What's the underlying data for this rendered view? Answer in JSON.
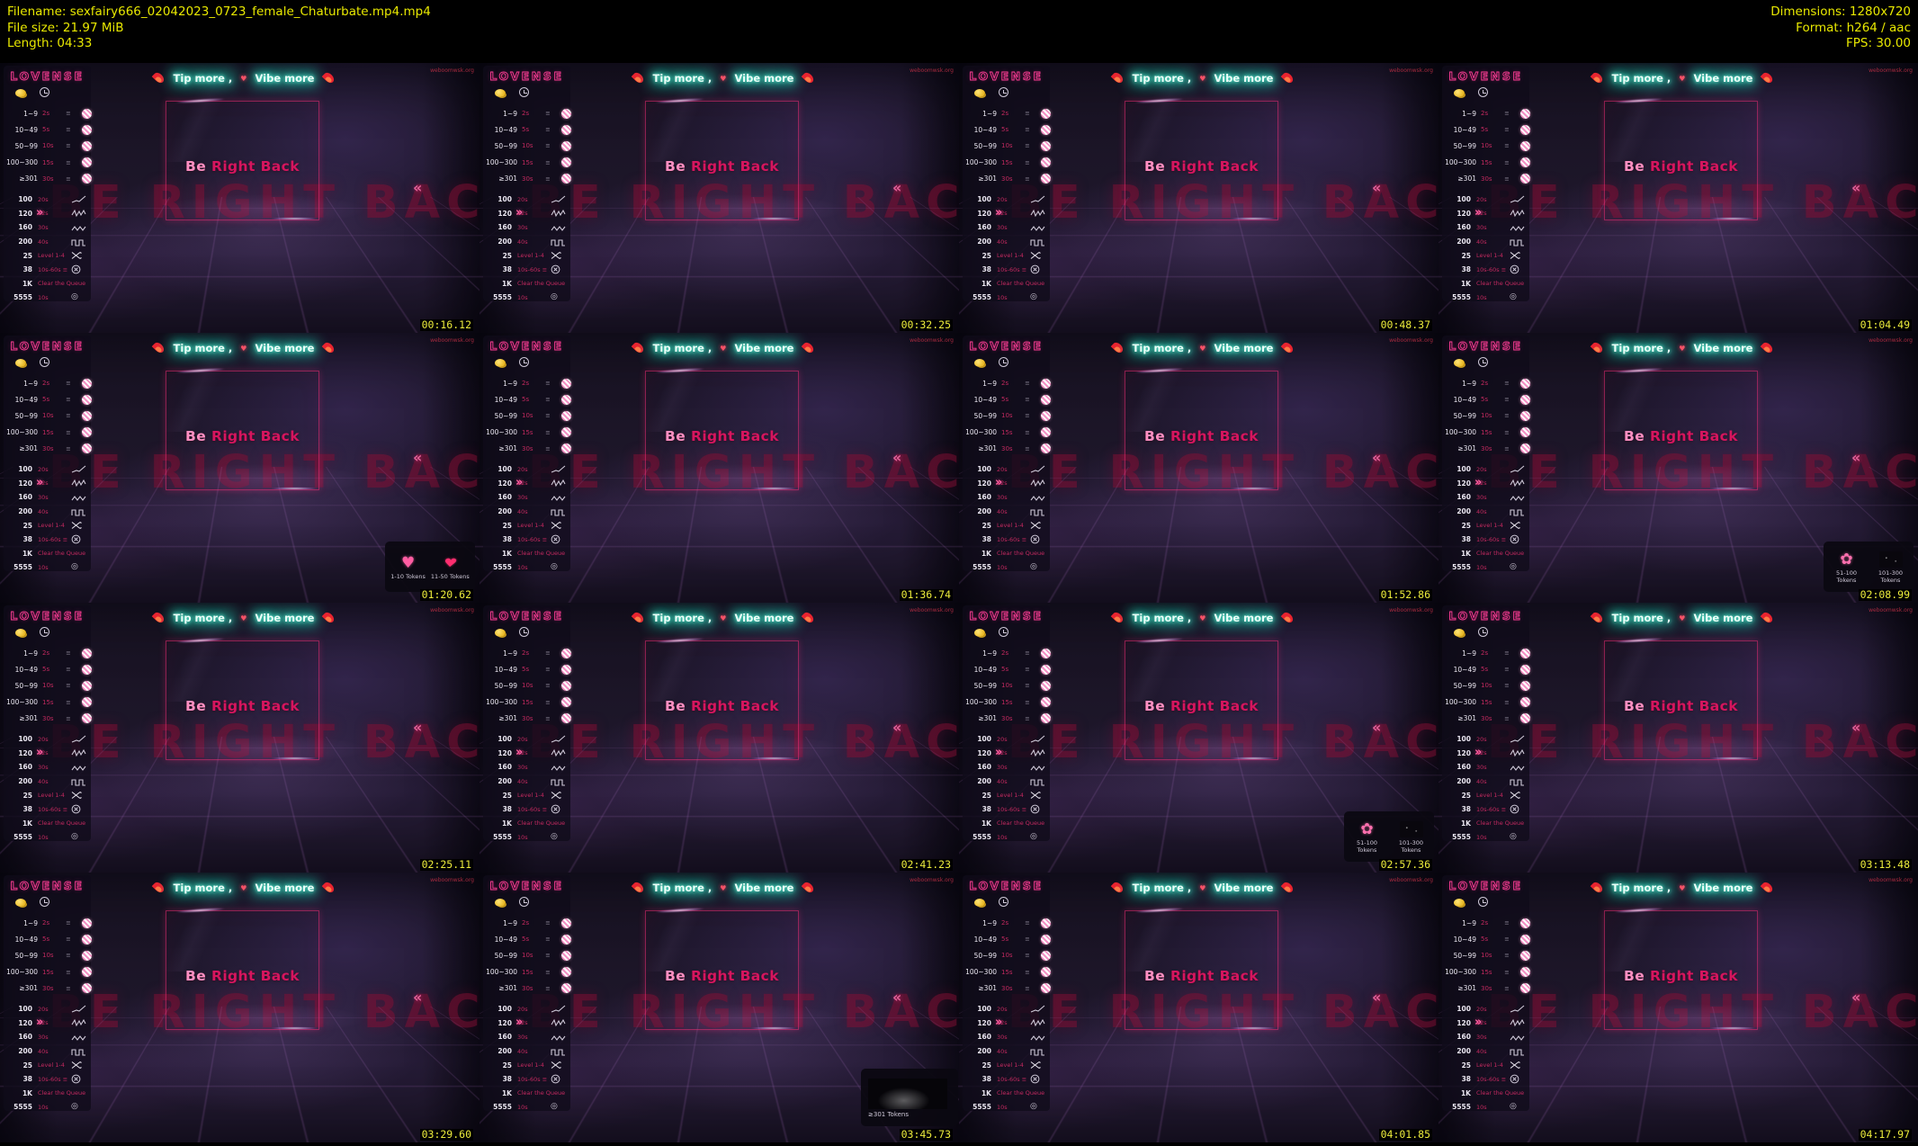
{
  "header": {
    "left_lines": [
      "Filename: sexfairy666_02042023_0723_female_Chaturbate.mp4.mp4",
      "File size: 21.97 MiB",
      "Length: 04:33"
    ],
    "right_lines": [
      "Dimensions: 1280x720",
      "Format: h264 / aac",
      "FPS: 30.00"
    ],
    "text_color": "#e8e800"
  },
  "thumb": {
    "watermark": "weboomwsk.org",
    "bg_text": "BE RIGHT BACK",
    "neon": {
      "left": "Tip more ,",
      "heart": "♥",
      "right": "Vibe more"
    },
    "brb": {
      "word1": "Be",
      "word2": " Right Back"
    },
    "right_chevron": "«",
    "menu": {
      "logo": "LOVENSE",
      "header_icons": [
        "coins-icon",
        "clock-icon"
      ],
      "list_icon": "≡",
      "expand_chevron": "»",
      "record_glyph": "◎",
      "tip_rows": [
        {
          "tokens": "1~9",
          "duration": "2s"
        },
        {
          "tokens": "10~49",
          "duration": "5s"
        },
        {
          "tokens": "50~99",
          "duration": "10s"
        },
        {
          "tokens": "100~300",
          "duration": "15s"
        },
        {
          "tokens": "≥301",
          "duration": "30s"
        }
      ],
      "pattern_rows": [
        {
          "tokens": "100",
          "label": "20s",
          "icon": "wave-rise-icon"
        },
        {
          "tokens": "120",
          "label": "22s",
          "icon": "wave-pulse-icon"
        },
        {
          "tokens": "160",
          "label": "30s",
          "icon": "wave-sine-icon"
        },
        {
          "tokens": "200",
          "label": "40s",
          "icon": "wave-square-icon"
        },
        {
          "tokens": "25",
          "label": "Level 1-4",
          "icon": "shuffle-icon"
        },
        {
          "tokens": "38",
          "label": "10s-60s ≡",
          "icon": "timer-icon"
        },
        {
          "tokens": "1K",
          "label": "Clear the Queue",
          "icon": ""
        },
        {
          "tokens": "5555",
          "label": "10s",
          "icon": "record-icon"
        }
      ]
    },
    "colors": {
      "accent_pink": "#ff2d8a",
      "neon_teal": "#3ae8c6",
      "timestamp_yellow": "#ecec3c",
      "header_yellow": "#e8e800"
    }
  },
  "frames": [
    {
      "timestamp": "00:16.12"
    },
    {
      "timestamp": "00:32.25"
    },
    {
      "timestamp": "00:48.37"
    },
    {
      "timestamp": "01:04.49"
    },
    {
      "timestamp": "01:20.62",
      "overlay": {
        "items": [
          {
            "icon": "sparkling-heart",
            "glyph": "♥",
            "label": "1-10 Tokens"
          },
          {
            "icon": "kiss-lips",
            "glyph": "♥",
            "label": "11-50 Tokens"
          }
        ]
      }
    },
    {
      "timestamp": "01:36.74"
    },
    {
      "timestamp": "01:52.86"
    },
    {
      "timestamp": "02:08.99",
      "overlay": {
        "items": [
          {
            "icon": "pink-rose",
            "glyph": "✿",
            "label": "51-100 Tokens"
          },
          {
            "icon": "dark-gift",
            "glyph": "",
            "label": "101-300 Tokens"
          }
        ]
      }
    },
    {
      "timestamp": "02:25.11"
    },
    {
      "timestamp": "02:41.23"
    },
    {
      "timestamp": "02:57.36",
      "overlay": {
        "items": [
          {
            "icon": "pink-rose",
            "glyph": "✿",
            "label": "51-100 Tokens"
          },
          {
            "icon": "dark-gift",
            "glyph": "",
            "label": "101-300 Tokens"
          }
        ]
      }
    },
    {
      "timestamp": "03:13.48"
    },
    {
      "timestamp": "03:29.60"
    },
    {
      "timestamp": "03:45.73",
      "overlay": {
        "wide": true,
        "items": [
          {
            "icon": "dark-image",
            "glyph": "",
            "label": "≥301 Tokens"
          }
        ]
      }
    },
    {
      "timestamp": "04:01.85"
    },
    {
      "timestamp": "04:17.97"
    }
  ]
}
